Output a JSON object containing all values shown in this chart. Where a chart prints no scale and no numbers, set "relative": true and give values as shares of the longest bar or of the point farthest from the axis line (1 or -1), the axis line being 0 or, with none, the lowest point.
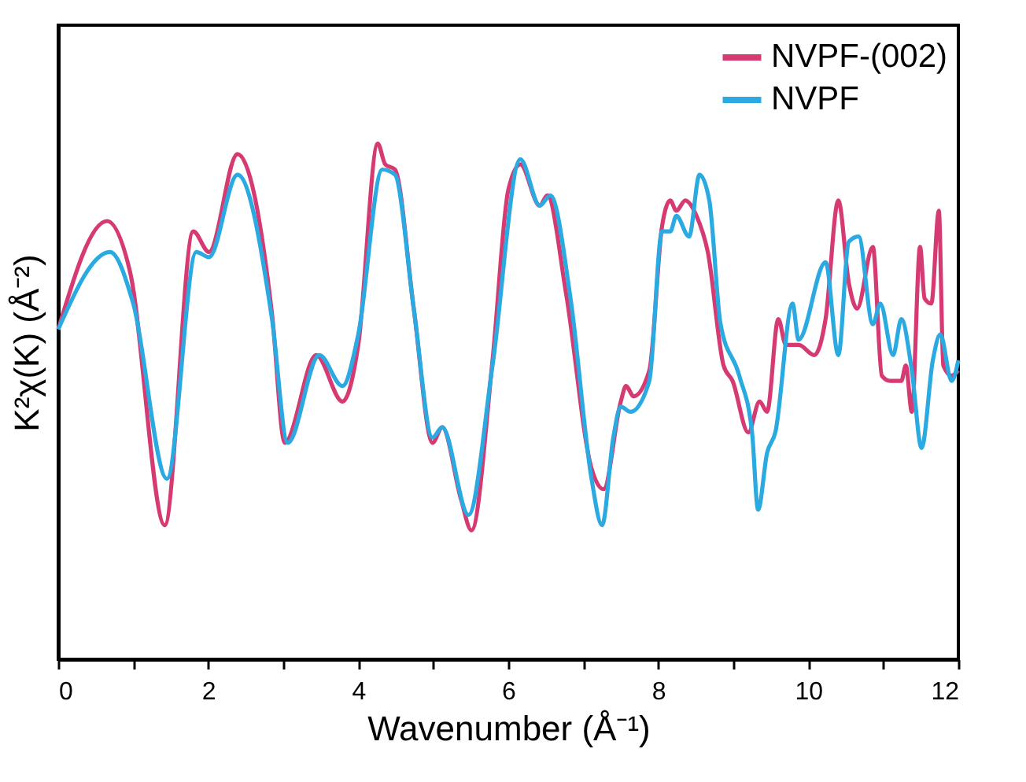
{
  "chart_data": {
    "type": "line",
    "relative": true,
    "xlabel": "Wavenumber (Å⁻¹)",
    "ylabel": "K²χ(K) (Å⁻²)",
    "xlim": [
      0,
      12
    ],
    "xticks": [
      0,
      {
        "value": 1,
        "label": null
      },
      2,
      {
        "value": 3,
        "label": null
      },
      4,
      {
        "value": 5,
        "label": null
      },
      6,
      {
        "value": 7,
        "label": null
      },
      8,
      {
        "value": 9,
        "label": null
      },
      10,
      {
        "value": 11,
        "label": null
      },
      12
    ],
    "grid": false,
    "legend": "top right",
    "line_style": "solid",
    "marker": "none",
    "series": [
      {
        "name": "NVPF-(002)",
        "color": "#d63a72",
        "x": [
          0,
          0.65,
          0.96,
          1.42,
          1.8,
          2.01,
          2.39,
          2.85,
          3.02,
          3.44,
          3.79,
          4.0,
          4.26,
          4.36,
          4.49,
          4.74,
          4.99,
          5.12,
          5.37,
          5.51,
          5.79,
          6.0,
          6.16,
          6.42,
          6.52,
          6.77,
          7.11,
          7.27,
          7.5,
          7.57,
          7.67,
          7.88,
          8.05,
          8.16,
          8.24,
          8.36,
          8.51,
          8.66,
          8.87,
          8.99,
          9.2,
          9.35,
          9.45,
          9.6,
          9.7,
          9.87,
          10.08,
          10.23,
          10.4,
          10.54,
          10.65,
          10.86,
          10.98,
          11.09,
          11.24,
          11.3,
          11.38,
          11.49,
          11.55,
          11.64,
          11.74,
          11.8,
          11.91,
          12
        ],
        "values": [
          0.64,
          0.85,
          0.75,
          0.26,
          0.83,
          0.79,
          0.98,
          0.67,
          0.42,
          0.59,
          0.5,
          0.61,
          1.0,
          0.96,
          0.95,
          0.68,
          0.42,
          0.45,
          0.31,
          0.25,
          0.58,
          0.91,
          0.96,
          0.88,
          0.9,
          0.71,
          0.37,
          0.33,
          0.5,
          0.53,
          0.51,
          0.56,
          0.84,
          0.89,
          0.87,
          0.89,
          0.86,
          0.79,
          0.57,
          0.54,
          0.44,
          0.5,
          0.48,
          0.66,
          0.61,
          0.61,
          0.59,
          0.66,
          0.89,
          0.73,
          0.68,
          0.8,
          0.55,
          0.54,
          0.54,
          0.57,
          0.48,
          0.8,
          0.7,
          0.69,
          0.87,
          0.57,
          0.55,
          0.56
        ]
      },
      {
        "name": "NVPF",
        "color": "#2aaae0",
        "x": [
          0,
          0.69,
          1.0,
          1.45,
          1.84,
          2.01,
          2.39,
          2.85,
          3.06,
          3.48,
          3.79,
          4.0,
          4.32,
          4.49,
          4.74,
          4.99,
          5.12,
          5.47,
          5.79,
          6.16,
          6.42,
          6.56,
          6.83,
          7.11,
          7.25,
          7.4,
          7.5,
          7.63,
          7.88,
          8.05,
          8.16,
          8.24,
          8.41,
          8.55,
          8.68,
          8.83,
          9.08,
          9.25,
          9.33,
          9.45,
          9.56,
          9.79,
          9.87,
          10.23,
          10.4,
          10.54,
          10.67,
          10.86,
          10.96,
          11.13,
          11.24,
          11.38,
          11.51,
          11.66,
          11.76,
          11.91,
          12
        ],
        "values": [
          0.64,
          0.79,
          0.69,
          0.35,
          0.79,
          0.78,
          0.94,
          0.66,
          0.42,
          0.59,
          0.53,
          0.63,
          0.95,
          0.94,
          0.68,
          0.43,
          0.45,
          0.28,
          0.57,
          0.97,
          0.88,
          0.9,
          0.7,
          0.35,
          0.26,
          0.43,
          0.49,
          0.48,
          0.54,
          0.83,
          0.83,
          0.86,
          0.82,
          0.94,
          0.89,
          0.65,
          0.55,
          0.44,
          0.29,
          0.4,
          0.44,
          0.69,
          0.62,
          0.77,
          0.59,
          0.81,
          0.82,
          0.65,
          0.69,
          0.59,
          0.66,
          0.56,
          0.41,
          0.58,
          0.63,
          0.54,
          0.58
        ]
      }
    ]
  }
}
